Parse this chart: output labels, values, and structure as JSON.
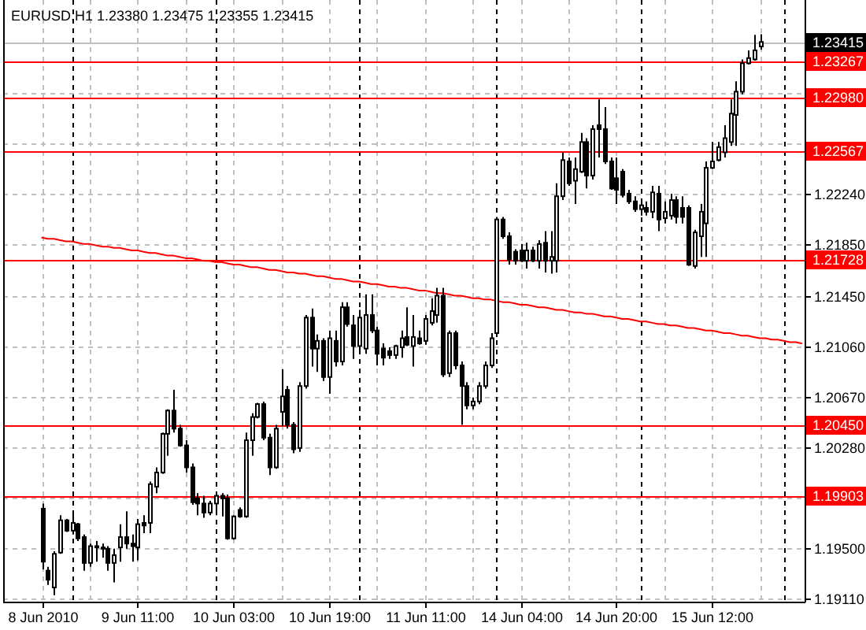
{
  "chart_data": {
    "type": "candlestick",
    "title": "EURUSD,H1 1.23380 1.23475 1.23355 1.23415",
    "color": "#000000",
    "categories": [
      "8 Jun 2010",
      null,
      null,
      null,
      null,
      null,
      null,
      null,
      null,
      null,
      null,
      null,
      null,
      null,
      null,
      null,
      "9 Jun 11:00",
      null,
      null,
      null,
      null,
      null,
      null,
      null,
      null,
      null,
      null,
      null,
      null,
      null,
      null,
      null,
      "10 Jun 03:00",
      null,
      null,
      null,
      null,
      null,
      null,
      null,
      null,
      null,
      null,
      null,
      null,
      null,
      null,
      null,
      "10 Jun 19:00",
      null,
      null,
      null,
      null,
      null,
      null,
      null,
      null,
      null,
      null,
      null,
      null,
      null,
      null,
      null,
      "11 Jun 11:00",
      null,
      null,
      null,
      null,
      null,
      null,
      null,
      null,
      null,
      null,
      null,
      null,
      null,
      null,
      null,
      "14 Jun 04:00",
      null,
      null,
      null,
      null,
      null,
      null,
      null,
      null,
      null,
      null,
      null,
      null,
      null,
      null,
      null,
      "14 Jun 20:00",
      null,
      null,
      null,
      null,
      null,
      null,
      null,
      null,
      null,
      null,
      null,
      null,
      null,
      null,
      null,
      "15 Jun 12:00",
      null,
      null,
      null,
      null,
      null,
      null,
      null,
      null,
      null,
      null,
      null,
      null,
      null,
      null,
      null
    ],
    "ohlc": [
      [
        1.198,
        1.1984,
        1.1933,
        1.1939
      ],
      [
        1.1932,
        1.1935,
        1.1921,
        1.1925
      ],
      [
        1.1919,
        1.1947,
        1.1913,
        1.1945
      ],
      [
        1.1946,
        1.1975,
        1.1945,
        1.1971
      ],
      [
        1.1971,
        1.1972,
        1.1962,
        1.1963
      ],
      [
        1.1963,
        1.1977,
        1.196,
        1.1969
      ],
      [
        1.1968,
        1.1969,
        1.1955,
        1.1957
      ],
      [
        1.1958,
        1.196,
        1.1932,
        1.1938
      ],
      [
        1.1938,
        1.1953,
        1.1935,
        1.1951
      ],
      [
        1.195,
        1.1955,
        1.1939,
        1.1951
      ],
      [
        1.195,
        1.1953,
        1.1942,
        1.1949
      ],
      [
        1.1949,
        1.1951,
        1.1932,
        1.1938
      ],
      [
        1.1938,
        1.1949,
        1.1923,
        1.1944
      ],
      [
        1.195,
        1.1968,
        1.1939,
        1.1958
      ],
      [
        1.1958,
        1.1978,
        1.1949,
        1.1953
      ],
      [
        1.1953,
        1.196,
        1.1939,
        1.1951
      ],
      [
        1.195,
        1.1972,
        1.194,
        1.1968
      ],
      [
        1.1969,
        1.1975,
        1.1961,
        1.1967
      ],
      [
        1.1969,
        1.2001,
        1.1961,
        1.1999
      ],
      [
        1.1997,
        1.2012,
        1.1992,
        1.2008
      ],
      [
        1.2008,
        1.2039,
        1.2007,
        1.2038
      ],
      [
        1.2038,
        1.2057,
        1.2021,
        1.2056
      ],
      [
        1.2056,
        1.2072,
        1.2039,
        1.2042
      ],
      [
        1.2042,
        1.2045,
        1.2028,
        1.2029
      ],
      [
        1.2029,
        1.2033,
        1.2008,
        1.2012
      ],
      [
        1.2012,
        1.2015,
        1.1983,
        1.1985
      ],
      [
        1.1988,
        1.1992,
        1.1975,
        1.1984
      ],
      [
        1.1984,
        1.199,
        1.1973,
        1.1977
      ],
      [
        1.1977,
        1.1986,
        1.1975,
        1.1984
      ],
      [
        1.1984,
        1.1992,
        1.1975,
        1.199
      ],
      [
        1.199,
        1.1992,
        1.1974,
        1.1988
      ],
      [
        1.1988,
        1.1991,
        1.1956,
        1.1957
      ],
      [
        1.1957,
        1.1975,
        1.1956,
        1.1974
      ],
      [
        1.1979,
        1.1981,
        1.1973,
        1.1974
      ],
      [
        1.1974,
        1.2039,
        1.1973,
        1.2033
      ],
      [
        1.2033,
        1.2054,
        1.2021,
        1.2051
      ],
      [
        1.2051,
        1.2062,
        1.205,
        1.2061
      ],
      [
        1.2061,
        1.2063,
        1.2033,
        1.2035
      ],
      [
        1.2035,
        1.2038,
        1.2006,
        1.2012
      ],
      [
        1.2012,
        1.2045,
        1.2011,
        1.2042
      ],
      [
        1.2055,
        1.2088,
        1.2044,
        1.2067
      ],
      [
        1.2072,
        1.2075,
        1.2042,
        1.2045
      ],
      [
        1.2045,
        1.2047,
        1.2023,
        1.2026
      ],
      [
        1.2027,
        1.2078,
        1.2024,
        1.2075
      ],
      [
        1.2075,
        1.213,
        1.2073,
        1.2128
      ],
      [
        1.2128,
        1.2135,
        1.209,
        1.2104
      ],
      [
        1.2104,
        1.2115,
        1.2086,
        1.211
      ],
      [
        1.211,
        1.2112,
        1.2079,
        1.2082
      ],
      [
        1.2082,
        1.2118,
        1.2069,
        1.2112
      ],
      [
        1.211,
        1.2118,
        1.209,
        1.2094
      ],
      [
        1.2094,
        1.214,
        1.2091,
        1.2136
      ],
      [
        1.2136,
        1.214,
        1.2121,
        1.2123
      ],
      [
        1.2122,
        1.213,
        1.2096,
        1.2106
      ],
      [
        1.2106,
        1.2134,
        1.21,
        1.2128
      ],
      [
        1.2104,
        1.2146,
        1.21,
        1.213
      ],
      [
        1.213,
        1.2146,
        1.2116,
        1.2118
      ],
      [
        1.2118,
        1.2121,
        1.2091,
        1.21
      ],
      [
        1.2104,
        1.2108,
        1.2091,
        1.2097
      ],
      [
        1.2102,
        1.2105,
        1.2096,
        1.2099
      ],
      [
        1.2099,
        1.2107,
        1.2096,
        1.2106
      ],
      [
        1.2105,
        1.2118,
        1.2097,
        1.2112
      ],
      [
        1.2113,
        1.2136,
        1.2106,
        1.2107
      ],
      [
        1.2106,
        1.213,
        1.209,
        1.2113
      ],
      [
        1.2112,
        1.2118,
        1.2107,
        1.2108
      ],
      [
        1.211,
        1.213,
        1.2107,
        1.2127
      ],
      [
        1.2124,
        1.2143,
        1.2122,
        1.2133
      ],
      [
        1.213,
        1.2151,
        1.2124,
        1.2145
      ],
      [
        1.2145,
        1.2151,
        1.2082,
        1.2084
      ],
      [
        1.2085,
        1.2118,
        1.2082,
        1.2116
      ],
      [
        1.2116,
        1.2118,
        1.2088,
        1.2091
      ],
      [
        1.2091,
        1.2094,
        1.2045,
        1.2075
      ],
      [
        1.2075,
        1.2078,
        1.2057,
        1.206
      ],
      [
        1.206,
        1.2066,
        1.2057,
        1.2063
      ],
      [
        1.2063,
        1.2078,
        1.2061,
        1.2075
      ],
      [
        1.2075,
        1.2094,
        1.2073,
        1.2091
      ],
      [
        1.2091,
        1.2116,
        1.2089,
        1.2112
      ],
      [
        1.2116,
        1.2206,
        1.2113,
        1.2204
      ],
      [
        1.2204,
        1.2206,
        1.2189,
        1.2191
      ],
      [
        1.2191,
        1.2194,
        1.2169,
        1.2173
      ],
      [
        1.2179,
        1.2181,
        1.2169,
        1.2172
      ],
      [
        1.218,
        1.2185,
        1.2171,
        1.2172
      ],
      [
        1.2172,
        1.2186,
        1.2166,
        1.218
      ],
      [
        1.218,
        1.2183,
        1.2171,
        1.2172
      ],
      [
        1.2172,
        1.2188,
        1.2166,
        1.2185
      ],
      [
        1.2186,
        1.2195,
        1.2163,
        1.2172
      ],
      [
        1.2172,
        1.2195,
        1.2162,
        1.2175
      ],
      [
        1.2172,
        1.2232,
        1.2163,
        1.2222
      ],
      [
        1.2222,
        1.2256,
        1.2219,
        1.225
      ],
      [
        1.2249,
        1.2252,
        1.223,
        1.2232
      ],
      [
        1.2234,
        1.2252,
        1.2216,
        1.2243
      ],
      [
        1.2241,
        1.2271,
        1.224,
        1.2264
      ],
      [
        1.2264,
        1.2267,
        1.2228,
        1.2238
      ],
      [
        1.2238,
        1.2277,
        1.2235,
        1.2274
      ],
      [
        1.2277,
        1.2297,
        1.2252,
        1.2274
      ],
      [
        1.2274,
        1.2291,
        1.2247,
        1.2249
      ],
      [
        1.2249,
        1.2252,
        1.2227,
        1.2228
      ],
      [
        1.2236,
        1.2252,
        1.2216,
        1.2227
      ],
      [
        1.2241,
        1.2243,
        1.2221,
        1.2223
      ],
      [
        1.2224,
        1.2227,
        1.2216,
        1.2218
      ],
      [
        1.2218,
        1.2222,
        1.221,
        1.2212
      ],
      [
        1.2212,
        1.2218,
        1.2207,
        1.2215
      ],
      [
        1.2213,
        1.2218,
        1.2207,
        1.221
      ],
      [
        1.221,
        1.223,
        1.2205,
        1.2225
      ],
      [
        1.2224,
        1.223,
        1.2195,
        1.2204
      ],
      [
        1.2205,
        1.2218,
        1.2201,
        1.221
      ],
      [
        1.2207,
        1.2224,
        1.2204,
        1.2219
      ],
      [
        1.2219,
        1.2222,
        1.2201,
        1.2206
      ],
      [
        1.2213,
        1.2222,
        1.2201,
        1.2206
      ],
      [
        1.2213,
        1.2215,
        1.2168,
        1.2169
      ],
      [
        1.2168,
        1.2196,
        1.2166,
        1.2194
      ],
      [
        1.2191,
        1.2216,
        1.2175,
        1.221
      ],
      [
        1.2201,
        1.2249,
        1.2175,
        1.2244
      ],
      [
        1.2244,
        1.2264,
        1.2243,
        1.2249
      ],
      [
        1.225,
        1.2264,
        1.2249,
        1.226
      ],
      [
        1.2256,
        1.2277,
        1.2252,
        1.2267
      ],
      [
        1.2264,
        1.2297,
        1.2261,
        1.2286
      ],
      [
        1.2285,
        1.2311,
        1.2261,
        1.2303
      ],
      [
        1.2303,
        1.2328,
        1.2301,
        1.2325
      ],
      [
        1.2325,
        1.2335,
        1.2324,
        1.2329
      ],
      [
        1.2328,
        1.2347,
        1.2327,
        1.2335
      ],
      [
        1.2338,
        1.23475,
        1.23355,
        1.23415
      ],
      null,
      null,
      null,
      null,
      null,
      null,
      null
    ],
    "series": [
      {
        "type": "line",
        "color": "#ff0000",
        "values": [
          1.219,
          1.2189,
          1.2189,
          1.2188,
          1.2187,
          1.2187,
          1.2186,
          1.2185,
          1.2185,
          1.2184,
          1.2183,
          1.2183,
          1.2182,
          1.2182,
          1.2181,
          1.218,
          1.218,
          1.2179,
          1.2178,
          1.2178,
          1.2177,
          1.2176,
          1.2176,
          1.2175,
          1.2174,
          1.2174,
          1.2173,
          1.2172,
          1.2172,
          1.2171,
          1.2171,
          1.217,
          1.2169,
          1.2169,
          1.2168,
          1.2167,
          1.2167,
          1.2166,
          1.2165,
          1.2165,
          1.2164,
          1.2163,
          1.2163,
          1.2162,
          1.2162,
          1.2161,
          1.216,
          1.216,
          1.2159,
          1.2158,
          1.2158,
          1.2157,
          1.2156,
          1.2156,
          1.2155,
          1.2154,
          1.2154,
          1.2153,
          1.2152,
          1.2152,
          1.2151,
          1.2151,
          1.215,
          1.2149,
          1.2149,
          1.2148,
          1.2147,
          1.2147,
          1.2146,
          1.2145,
          1.2145,
          1.2144,
          1.2143,
          1.2143,
          1.2142,
          1.2142,
          1.2141,
          1.214,
          1.214,
          1.2139,
          1.2138,
          1.2138,
          1.2137,
          1.2136,
          1.2136,
          1.2135,
          1.2134,
          1.2134,
          1.2133,
          1.2132,
          1.2132,
          1.2131,
          1.2131,
          1.213,
          1.2129,
          1.2129,
          1.2128,
          1.2127,
          1.2127,
          1.2126,
          1.2125,
          1.2125,
          1.2124,
          1.2123,
          1.2123,
          1.2122,
          1.2122,
          1.2121,
          1.212,
          1.212,
          1.2119,
          1.2118,
          1.2118,
          1.2117,
          1.2116,
          1.2116,
          1.2115,
          1.2114,
          1.2114,
          1.2113,
          1.2112,
          1.2112,
          1.2111,
          1.2111,
          1.211,
          1.2109,
          1.2109,
          1.2108
        ]
      }
    ],
    "ylim": [
      1.1908,
      1.2374
    ],
    "yticks": [
      {
        "value": 1.1911,
        "label": "1.19110"
      },
      {
        "value": 1.195,
        "label": "1.19500"
      },
      {
        "value": 1.1989,
        "label": null
      },
      {
        "value": 1.2028,
        "label": "1.20280"
      },
      {
        "value": 1.2067,
        "label": "1.20670"
      },
      {
        "value": 1.2106,
        "label": "1.21060"
      },
      {
        "value": 1.2145,
        "label": "1.21450"
      },
      {
        "value": 1.2185,
        "label": "1.21850"
      },
      {
        "value": 1.2224,
        "label": "1.22240"
      },
      {
        "value": 1.2263,
        "label": null
      },
      {
        "value": 1.2302,
        "label": null
      },
      {
        "value": 1.2341,
        "label": null
      }
    ],
    "grid": true,
    "ref_lines": [
      {
        "axis": "y",
        "value": 1.23415,
        "label": "1.23415",
        "color": "#c0c0c0"
      },
      {
        "axis": "y",
        "value": 1.23267,
        "label": "1.23267",
        "color": "#ff0000"
      },
      {
        "axis": "y",
        "value": 1.2298,
        "label": "1.22980",
        "color": "#ff0000"
      },
      {
        "axis": "y",
        "value": 1.22567,
        "label": "1.22567",
        "color": "#ff0000"
      },
      {
        "axis": "y",
        "value": 1.21728,
        "label": "1.21728",
        "color": "#ff0000"
      },
      {
        "axis": "y",
        "value": 1.2045,
        "label": "1.20450",
        "color": "#ff0000"
      },
      {
        "axis": "y",
        "value": 1.19903,
        "label": "1.19903",
        "color": "#ff0000"
      }
    ]
  }
}
